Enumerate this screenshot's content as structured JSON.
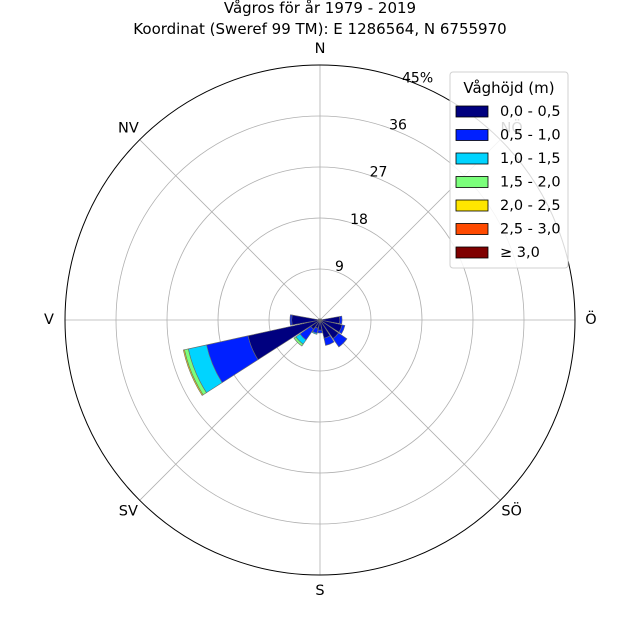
{
  "chart_data": {
    "type": "windrose",
    "title": "Vågros för år 1979 - 2019",
    "subtitle": "Koordinat (Sweref 99 TM): E 1286564, N 6755970",
    "direction_labels": [
      "N",
      "NÖ",
      "Ö",
      "SÖ",
      "S",
      "SV",
      "V",
      "NV"
    ],
    "radial_ticks": [
      9,
      18,
      27,
      36,
      45
    ],
    "radial_tick_labels": [
      "9",
      "18",
      "27",
      "36",
      "45%"
    ],
    "rmax": 45,
    "bin_width_deg": 22.5,
    "legend": {
      "title": "Våghöjd (m)",
      "placement": "top-right",
      "entries": [
        "0,0 - 0,5",
        "0,5 - 1,0",
        "1,0 - 1,5",
        "1,5 - 2,0",
        "2,0 - 2,5",
        "2,5 - 3,0",
        "≥ 3,0"
      ],
      "colors": [
        "#00007f",
        "#0020ff",
        "#00d4ff",
        "#7bff7b",
        "#ffe600",
        "#ff4a00",
        "#7f0000"
      ]
    },
    "sectors": [
      {
        "direction_deg": 0,
        "values": [
          0.2,
          0,
          0,
          0,
          0,
          0,
          0
        ]
      },
      {
        "direction_deg": 22.5,
        "values": [
          0.2,
          0,
          0,
          0,
          0,
          0,
          0
        ]
      },
      {
        "direction_deg": 45,
        "values": [
          0.2,
          0,
          0,
          0,
          0,
          0,
          0
        ]
      },
      {
        "direction_deg": 67.5,
        "values": [
          0.3,
          0,
          0,
          0,
          0,
          0,
          0
        ]
      },
      {
        "direction_deg": 90,
        "values": [
          3.5,
          0.4,
          0,
          0,
          0,
          0,
          0
        ]
      },
      {
        "direction_deg": 112.5,
        "values": [
          4.0,
          0.5,
          0,
          0,
          0,
          0,
          0
        ]
      },
      {
        "direction_deg": 135,
        "values": [
          4.0,
          1.8,
          0,
          0,
          0,
          0,
          0
        ]
      },
      {
        "direction_deg": 157.5,
        "values": [
          3.3,
          1.3,
          0,
          0,
          0,
          0,
          0
        ]
      },
      {
        "direction_deg": 180,
        "values": [
          1.8,
          0.5,
          0,
          0,
          0,
          0,
          0
        ]
      },
      {
        "direction_deg": 202.5,
        "values": [
          1.5,
          0.9,
          0.2,
          0,
          0,
          0,
          0
        ]
      },
      {
        "direction_deg": 225,
        "values": [
          2.0,
          2.3,
          0.9,
          0.4,
          0,
          0,
          0
        ]
      },
      {
        "direction_deg": 247.5,
        "values": [
          13.0,
          7.5,
          3.3,
          0.7,
          0.2,
          0,
          0
        ]
      },
      {
        "direction_deg": 270,
        "values": [
          5.0,
          0.3,
          0,
          0,
          0,
          0,
          0
        ]
      },
      {
        "direction_deg": 292.5,
        "values": [
          0.3,
          0,
          0,
          0,
          0,
          0,
          0
        ]
      },
      {
        "direction_deg": 315,
        "values": [
          0.2,
          0,
          0,
          0,
          0,
          0,
          0
        ]
      },
      {
        "direction_deg": 337.5,
        "values": [
          0.2,
          0,
          0,
          0,
          0,
          0,
          0
        ]
      }
    ]
  }
}
